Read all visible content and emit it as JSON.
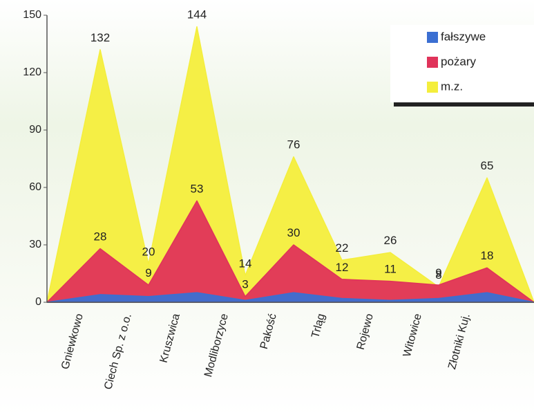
{
  "chart_data": {
    "type": "area",
    "categories": [
      "Gniewkowo",
      "Ciech Sp. z o.o.",
      "Kruszwica",
      "Modliborzyce",
      "Pakość",
      "Trląg",
      "Rojewo",
      "Witowice",
      "Złotniki Kuj."
    ],
    "series": [
      {
        "name": "m.z.",
        "color": "#f4ee3c",
        "values": [
          132,
          20,
          144,
          14,
          76,
          22,
          26,
          8,
          65
        ]
      },
      {
        "name": "pożary",
        "color": "#e0335a",
        "values": [
          28,
          9,
          53,
          3,
          30,
          12,
          11,
          9,
          18
        ]
      },
      {
        "name": "fałszywe",
        "color": "#3b6fd2",
        "values": [
          4,
          3,
          5,
          1,
          5,
          2,
          1,
          2,
          5
        ]
      }
    ],
    "labeled_series": [
      "m.z.",
      "pożary"
    ],
    "legend_order": [
      "fałszywe",
      "pożary",
      "m.z."
    ],
    "legend": "upper right",
    "ylim": [
      0,
      150
    ],
    "yticks": [
      0,
      30,
      60,
      90,
      120,
      150
    ]
  }
}
